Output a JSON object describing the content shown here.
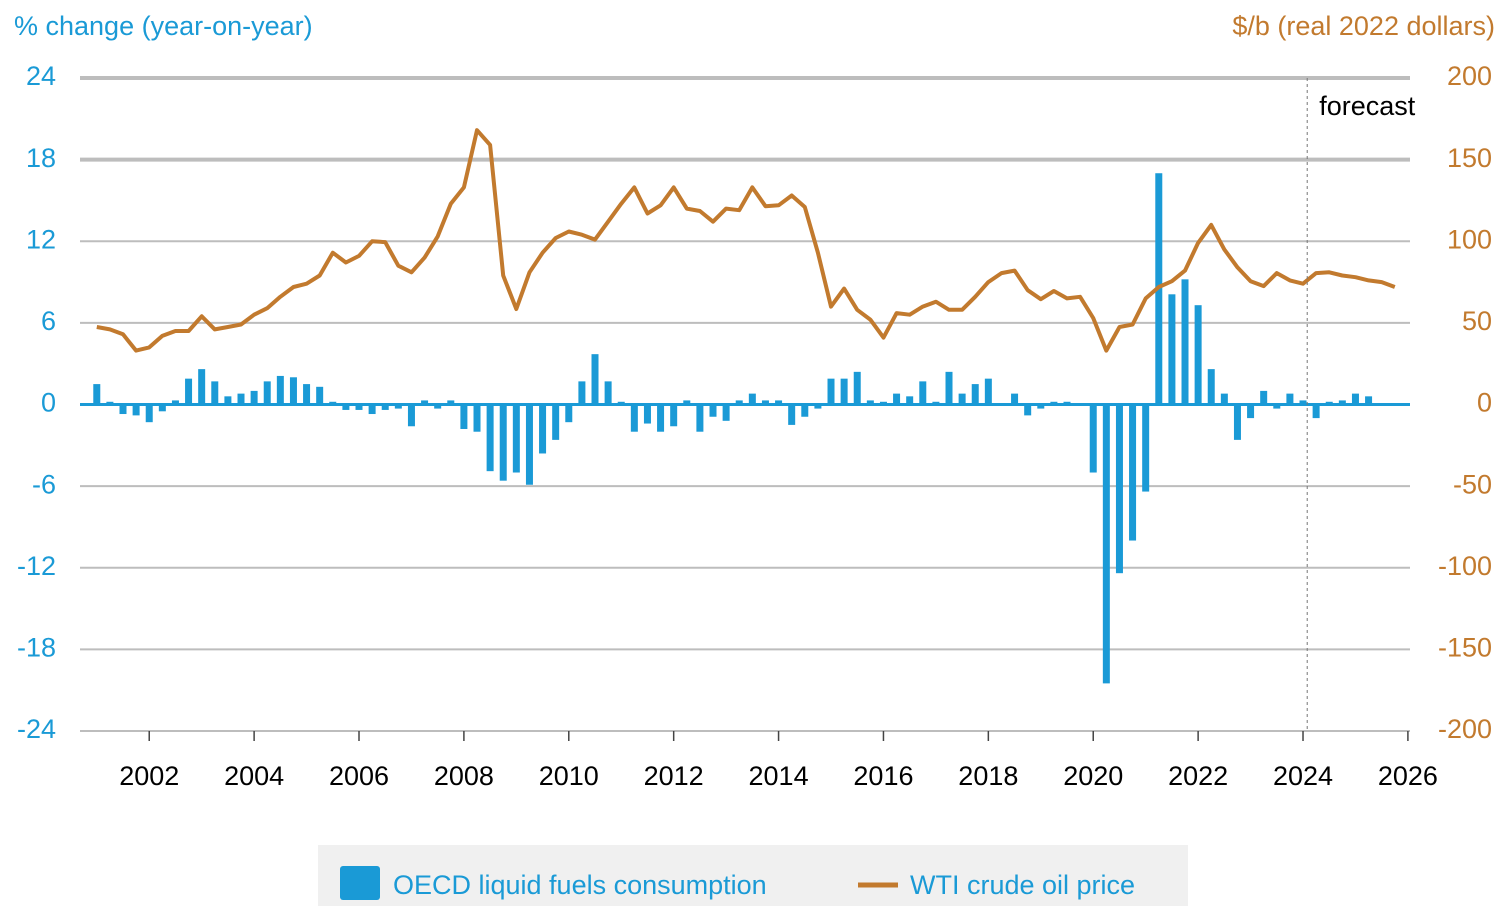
{
  "chart_data": {
    "type": "bar_line",
    "y_label": "% change (year-on-year)",
    "y2_label": "$/b (real 2022 dollars)",
    "annotations": [
      {
        "text": "forecast",
        "x": 2024.08
      }
    ],
    "x": [
      2001,
      2001.25,
      2001.5,
      2001.75,
      2002,
      2002.25,
      2002.5,
      2002.75,
      2003,
      2003.25,
      2003.5,
      2003.75,
      2004,
      2004.25,
      2004.5,
      2004.75,
      2005,
      2005.25,
      2005.5,
      2005.75,
      2006,
      2006.25,
      2006.5,
      2006.75,
      2007,
      2007.25,
      2007.5,
      2007.75,
      2008,
      2008.25,
      2008.5,
      2008.75,
      2009,
      2009.25,
      2009.5,
      2009.75,
      2010,
      2010.25,
      2010.5,
      2010.75,
      2011,
      2011.25,
      2011.5,
      2011.75,
      2012,
      2012.25,
      2012.5,
      2012.75,
      2013,
      2013.25,
      2013.5,
      2013.75,
      2014,
      2014.25,
      2014.5,
      2014.75,
      2015,
      2015.25,
      2015.5,
      2015.75,
      2016,
      2016.25,
      2016.5,
      2016.75,
      2017,
      2017.25,
      2017.5,
      2017.75,
      2018,
      2018.25,
      2018.5,
      2018.75,
      2019,
      2019.25,
      2019.5,
      2019.75,
      2020,
      2020.25,
      2020.5,
      2020.75,
      2021,
      2021.25,
      2021.5,
      2021.75,
      2022,
      2022.25,
      2022.5,
      2022.75,
      2023,
      2023.25,
      2023.5,
      2023.75,
      2024,
      2024.25,
      2024.5,
      2024.75,
      2025,
      2025.25,
      2025.5,
      2025.75
    ],
    "series": [
      {
        "name": "OECD liquid fuels consumption",
        "color": "#1a9ad6",
        "axis": "y",
        "kind": "bar",
        "values": [
          1.5,
          0.2,
          -0.7,
          -0.8,
          -1.3,
          -0.5,
          0.3,
          1.9,
          2.6,
          1.7,
          0.6,
          0.8,
          1.0,
          1.7,
          2.1,
          2.0,
          1.5,
          1.3,
          0.2,
          -0.4,
          -0.4,
          -0.7,
          -0.4,
          -0.3,
          -1.6,
          0.3,
          -0.3,
          0.3,
          -1.8,
          -2.0,
          -4.9,
          -5.6,
          -5.0,
          -5.9,
          -3.6,
          -2.6,
          -1.3,
          1.7,
          3.7,
          1.7,
          0.2,
          -2.0,
          -1.4,
          -2.0,
          -1.6,
          0.3,
          -2.0,
          -0.9,
          -1.2,
          0.3,
          0.8,
          0.3,
          0.3,
          -1.5,
          -0.9,
          -0.3,
          1.9,
          1.9,
          2.4,
          0.3,
          0.2,
          0.8,
          0.6,
          1.7,
          0.2,
          2.4,
          0.8,
          1.5,
          1.9,
          0.1,
          0.8,
          -0.8,
          -0.3,
          0.2,
          0.2,
          0.1,
          -5.0,
          -20.5,
          -12.4,
          -10.0,
          -6.4,
          17.0,
          8.1,
          9.2,
          7.3,
          2.6,
          0.8,
          -2.6,
          -1.0,
          1.0,
          -0.3,
          0.8,
          0.3,
          -1.0,
          0.2,
          0.3,
          0.8,
          0.6,
          0.1,
          0.1
        ]
      },
      {
        "name": "WTI crude oil price",
        "color": "#c27a2e",
        "axis": "y2",
        "kind": "line",
        "values": [
          47.5,
          46,
          43,
          33,
          35,
          42,
          45,
          45,
          54,
          46,
          47.5,
          49,
          55,
          59,
          66,
          72,
          74,
          79,
          93,
          87,
          91,
          100,
          99.5,
          85,
          81,
          90,
          103,
          123,
          133,
          168,
          159,
          79,
          58.5,
          81,
          93,
          102,
          106,
          104,
          101,
          112,
          123,
          133,
          117,
          122,
          133,
          120,
          118.5,
          112,
          120,
          119,
          133,
          121.5,
          122,
          128,
          121,
          93,
          60,
          71,
          58,
          52,
          41,
          56,
          55,
          60,
          63,
          58,
          58,
          66,
          75,
          80.5,
          82,
          70,
          64.5,
          69.5,
          65,
          66,
          53,
          33,
          47.5,
          49,
          65,
          72,
          75.5,
          82,
          99,
          110,
          95,
          84,
          75.5,
          72.5,
          80.5,
          76,
          74,
          80.5,
          81,
          79,
          78,
          76,
          75,
          72
        ]
      }
    ],
    "xlim": [
      2000.68,
      2026.04
    ],
    "xticks": [
      2002,
      2004,
      2006,
      2008,
      2010,
      2012,
      2014,
      2016,
      2018,
      2020,
      2022,
      2024,
      2026
    ],
    "ylim": [
      -24,
      24
    ],
    "yticks": [
      24,
      18,
      12,
      6,
      0,
      -6,
      -12,
      -18,
      -24
    ],
    "y2lim": [
      -200,
      200
    ],
    "y2ticks": [
      200,
      150,
      100,
      50,
      0,
      -50,
      -100,
      -150,
      -200
    ],
    "grid": true
  }
}
